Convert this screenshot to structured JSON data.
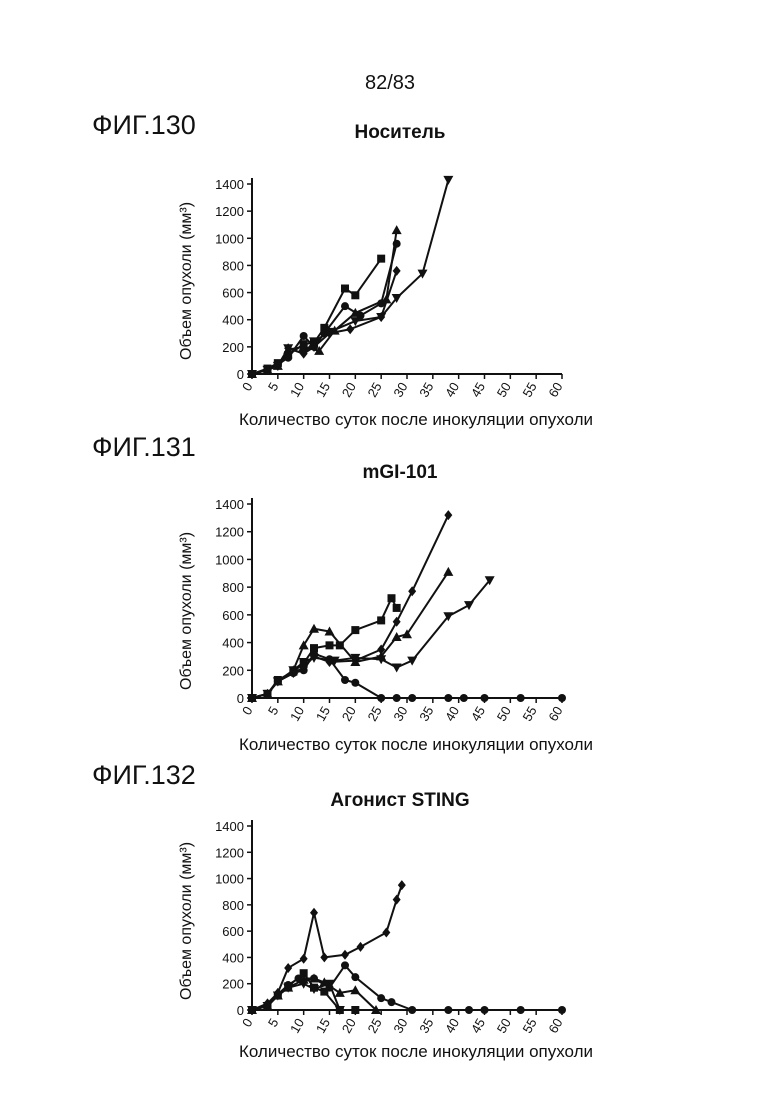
{
  "page_number": "82/83",
  "figures": [
    {
      "label": "ФИГ.130"
    },
    {
      "label": "ФИГ.131"
    },
    {
      "label": "ФИГ.132"
    }
  ],
  "chart_data": [
    {
      "type": "line",
      "title": "Носитель",
      "xlabel": "Количество суток после инокуляции опухоли",
      "ylabel": "Объем опухоли (мм³)",
      "xlim": [
        0,
        60
      ],
      "ylim": [
        0,
        1400
      ],
      "xticks": [
        0,
        5,
        10,
        15,
        20,
        25,
        30,
        35,
        40,
        45,
        50,
        55,
        60
      ],
      "yticks": [
        0,
        200,
        400,
        600,
        800,
        1000,
        1200,
        1400
      ],
      "grid": false,
      "series": [
        {
          "marker": "square",
          "points": [
            [
              0,
              0
            ],
            [
              3,
              40
            ],
            [
              5,
              80
            ],
            [
              7,
              140
            ],
            [
              10,
              220
            ],
            [
              12,
              230
            ],
            [
              14,
              340
            ],
            [
              18,
              630
            ],
            [
              20,
              580
            ],
            [
              25,
              850
            ]
          ]
        },
        {
          "marker": "circle",
          "points": [
            [
              0,
              0
            ],
            [
              3,
              30
            ],
            [
              5,
              70
            ],
            [
              7,
              120
            ],
            [
              10,
              280
            ],
            [
              12,
              200
            ],
            [
              14,
              300
            ],
            [
              18,
              500
            ],
            [
              21,
              430
            ],
            [
              25,
              520
            ],
            [
              28,
              960
            ]
          ]
        },
        {
          "marker": "triangle",
          "points": [
            [
              0,
              0
            ],
            [
              3,
              30
            ],
            [
              5,
              60
            ],
            [
              7,
              180
            ],
            [
              10,
              200
            ],
            [
              13,
              170
            ],
            [
              16,
              320
            ],
            [
              20,
              450
            ],
            [
              26,
              550
            ],
            [
              28,
              1060
            ]
          ]
        },
        {
          "marker": "triangle-down",
          "points": [
            [
              0,
              0
            ],
            [
              3,
              30
            ],
            [
              5,
              60
            ],
            [
              7,
              190
            ],
            [
              10,
              150
            ],
            [
              12,
              240
            ],
            [
              15,
              310
            ],
            [
              20,
              390
            ],
            [
              25,
              420
            ],
            [
              28,
              560
            ],
            [
              33,
              740
            ],
            [
              38,
              1430
            ]
          ]
        },
        {
          "marker": "diamond",
          "points": [
            [
              0,
              0
            ],
            [
              3,
              30
            ],
            [
              5,
              60
            ],
            [
              7,
              190
            ],
            [
              10,
              150
            ],
            [
              12,
              200
            ],
            [
              15,
              300
            ],
            [
              19,
              330
            ],
            [
              25,
              420
            ],
            [
              28,
              760
            ]
          ]
        }
      ]
    },
    {
      "type": "line",
      "title": "mGI-101",
      "xlabel": "Количество суток после инокуляции опухоли",
      "ylabel": "Объем опухоли (мм³)",
      "xlim": [
        0,
        60
      ],
      "ylim": [
        0,
        1400
      ],
      "xticks": [
        0,
        5,
        10,
        15,
        20,
        25,
        30,
        35,
        40,
        45,
        50,
        55,
        60
      ],
      "yticks": [
        0,
        200,
        400,
        600,
        800,
        1000,
        1200,
        1400
      ],
      "grid": false,
      "series": [
        {
          "marker": "circle",
          "points": [
            [
              0,
              0
            ],
            [
              3,
              30
            ],
            [
              5,
              120
            ],
            [
              8,
              180
            ],
            [
              10,
              200
            ],
            [
              12,
              320
            ],
            [
              15,
              280
            ],
            [
              18,
              130
            ],
            [
              20,
              110
            ],
            [
              25,
              0
            ],
            [
              28,
              0
            ],
            [
              31,
              0
            ],
            [
              38,
              0
            ],
            [
              41,
              0
            ],
            [
              45,
              0
            ],
            [
              52,
              0
            ],
            [
              60,
              0
            ]
          ]
        },
        {
          "marker": "square",
          "points": [
            [
              0,
              0
            ],
            [
              3,
              30
            ],
            [
              5,
              130
            ],
            [
              8,
              190
            ],
            [
              10,
              250
            ],
            [
              12,
              360
            ],
            [
              15,
              380
            ],
            [
              17,
              380
            ],
            [
              20,
              490
            ],
            [
              25,
              560
            ],
            [
              27,
              720
            ],
            [
              28,
              650
            ]
          ]
        },
        {
          "marker": "triangle",
          "points": [
            [
              0,
              0
            ],
            [
              3,
              30
            ],
            [
              5,
              120
            ],
            [
              8,
              200
            ],
            [
              10,
              380
            ],
            [
              12,
              500
            ],
            [
              15,
              480
            ],
            [
              20,
              260
            ],
            [
              25,
              300
            ],
            [
              28,
              440
            ],
            [
              30,
              460
            ],
            [
              38,
              910
            ]
          ]
        },
        {
          "marker": "triangle-down",
          "points": [
            [
              0,
              0
            ],
            [
              3,
              30
            ],
            [
              5,
              120
            ],
            [
              8,
              200
            ],
            [
              10,
              260
            ],
            [
              12,
              290
            ],
            [
              16,
              270
            ],
            [
              20,
              290
            ],
            [
              25,
              280
            ],
            [
              28,
              220
            ],
            [
              31,
              270
            ],
            [
              38,
              590
            ],
            [
              42,
              670
            ],
            [
              46,
              850
            ]
          ]
        },
        {
          "marker": "diamond",
          "points": [
            [
              0,
              0
            ],
            [
              3,
              30
            ],
            [
              5,
              120
            ],
            [
              8,
              180
            ],
            [
              10,
              220
            ],
            [
              12,
              300
            ],
            [
              15,
              260
            ],
            [
              20,
              270
            ],
            [
              25,
              350
            ],
            [
              28,
              550
            ],
            [
              31,
              770
            ],
            [
              38,
              1320
            ]
          ]
        }
      ]
    },
    {
      "type": "line",
      "title": "Агонист STING",
      "xlabel": "Количество суток после инокуляции опухоли",
      "ylabel": "Объем опухоли (мм³)",
      "xlim": [
        0,
        60
      ],
      "ylim": [
        0,
        1400
      ],
      "xticks": [
        0,
        5,
        10,
        15,
        20,
        25,
        30,
        35,
        40,
        45,
        50,
        55,
        60
      ],
      "yticks": [
        0,
        200,
        400,
        600,
        800,
        1000,
        1200,
        1400
      ],
      "grid": false,
      "series": [
        {
          "marker": "diamond",
          "points": [
            [
              0,
              0
            ],
            [
              3,
              50
            ],
            [
              5,
              130
            ],
            [
              7,
              320
            ],
            [
              10,
              390
            ],
            [
              12,
              740
            ],
            [
              14,
              400
            ],
            [
              18,
              420
            ],
            [
              21,
              480
            ],
            [
              26,
              590
            ],
            [
              28,
              840
            ],
            [
              29,
              950
            ]
          ]
        },
        {
          "marker": "circle",
          "points": [
            [
              0,
              0
            ],
            [
              3,
              40
            ],
            [
              5,
              120
            ],
            [
              7,
              190
            ],
            [
              9,
              240
            ],
            [
              12,
              240
            ],
            [
              15,
              170
            ],
            [
              18,
              340
            ],
            [
              20,
              250
            ],
            [
              25,
              90
            ],
            [
              27,
              60
            ],
            [
              31,
              0
            ],
            [
              38,
              0
            ],
            [
              42,
              0
            ],
            [
              45,
              0
            ],
            [
              52,
              0
            ],
            [
              60,
              0
            ]
          ]
        },
        {
          "marker": "square",
          "points": [
            [
              0,
              0
            ],
            [
              3,
              30
            ],
            [
              5,
              110
            ],
            [
              7,
              180
            ],
            [
              10,
              280
            ],
            [
              12,
              170
            ],
            [
              14,
              140
            ],
            [
              17,
              0
            ],
            [
              20,
              0
            ]
          ]
        },
        {
          "marker": "triangle",
          "points": [
            [
              0,
              0
            ],
            [
              3,
              30
            ],
            [
              5,
              110
            ],
            [
              7,
              170
            ],
            [
              10,
              230
            ],
            [
              12,
              240
            ],
            [
              14,
              210
            ],
            [
              17,
              130
            ],
            [
              20,
              150
            ],
            [
              24,
              0
            ]
          ]
        },
        {
          "marker": "triangle-down",
          "points": [
            [
              0,
              0
            ],
            [
              3,
              30
            ],
            [
              5,
              110
            ],
            [
              7,
              170
            ],
            [
              10,
              200
            ],
            [
              12,
              160
            ],
            [
              15,
              200
            ],
            [
              17,
              0
            ]
          ]
        }
      ]
    }
  ]
}
